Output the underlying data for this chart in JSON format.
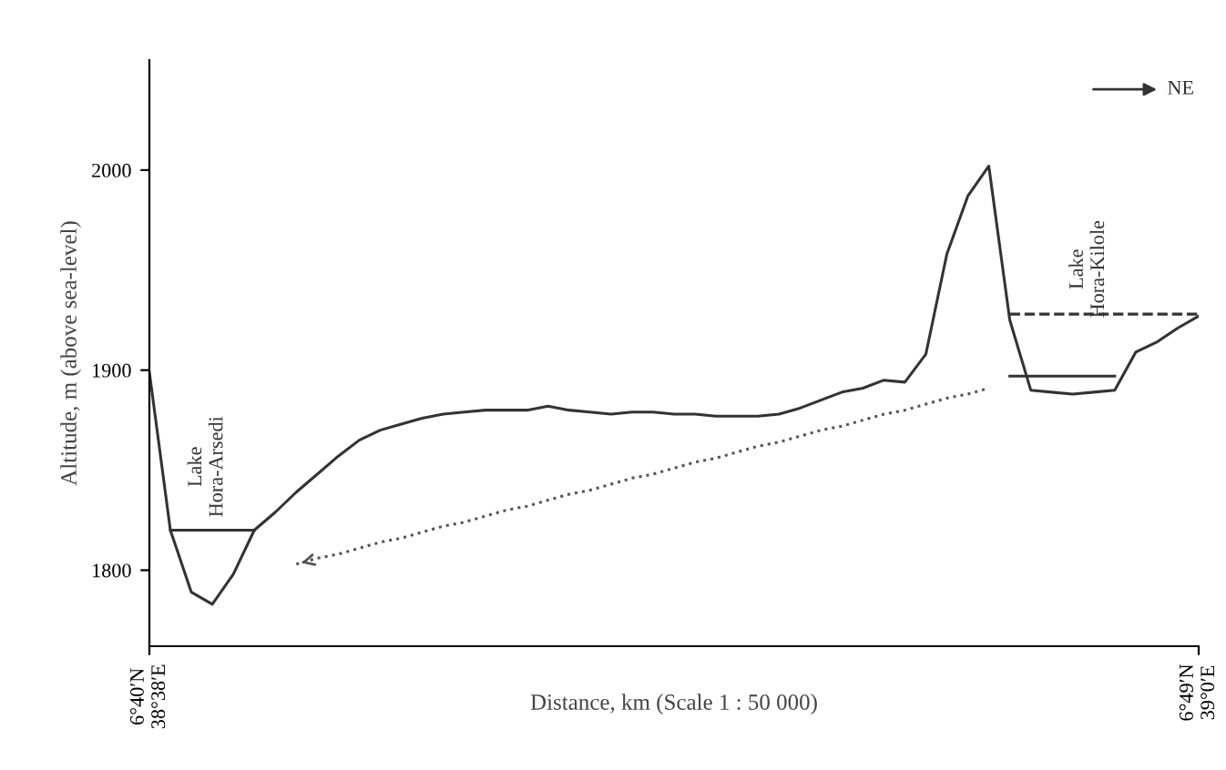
{
  "chart_data": {
    "type": "line",
    "xlabel": "Distance, km (Scale 1 : 50 000)",
    "ylabel": "Altitude, m (above sea-level)",
    "categories": [
      "6°40′N\n38°38′E",
      null,
      null,
      null,
      null,
      null,
      null,
      null,
      null,
      null,
      null,
      null,
      null,
      null,
      null,
      null,
      null,
      null,
      null,
      null,
      null,
      null,
      null,
      null,
      null,
      null,
      null,
      null,
      null,
      null,
      null,
      null,
      null,
      null,
      null,
      null,
      null,
      null,
      null,
      null,
      null,
      null,
      null,
      null,
      null,
      null,
      null,
      null,
      null,
      null,
      "6°49′N\n39°0′E"
    ],
    "ylim": [
      1762,
      2055
    ],
    "yticks": [
      1800,
      1900,
      2000
    ],
    "grid": false,
    "legend": false,
    "marker": "none",
    "series": [
      {
        "color": "#333333",
        "line_style": "solid",
        "values": [
          1899,
          1820,
          1789,
          1783,
          1798,
          1820,
          1829,
          1839,
          1848,
          1857,
          1865,
          1870,
          1873,
          1876,
          1878,
          1879,
          1880,
          1880,
          1880,
          1882,
          1880,
          1879,
          1878,
          1879,
          1879,
          1878,
          1878,
          1877,
          1877,
          1877,
          1878,
          1881,
          1885,
          1889,
          1891,
          1895,
          1894,
          1908,
          1958,
          1987,
          2002,
          1925,
          1890,
          1889,
          1888,
          1889,
          1890,
          1909,
          1914,
          1921,
          1927
        ]
      },
      {
        "color": "#333333",
        "line_style": "solid",
        "values": [
          null,
          1820,
          1820,
          1820,
          1820,
          1820,
          null,
          null,
          null,
          null,
          null,
          null,
          null,
          null,
          null,
          null,
          null,
          null,
          null,
          null,
          null,
          null,
          null,
          null,
          null,
          null,
          null,
          null,
          null,
          null,
          null,
          null,
          null,
          null,
          null,
          null,
          null,
          null,
          null,
          null,
          null,
          null,
          null,
          null,
          null,
          null,
          null,
          null,
          null,
          null,
          null
        ]
      },
      {
        "color": "#333333",
        "line_style": "solid",
        "values": [
          null,
          null,
          null,
          null,
          null,
          null,
          null,
          null,
          null,
          null,
          null,
          null,
          null,
          null,
          null,
          null,
          null,
          null,
          null,
          null,
          null,
          null,
          null,
          null,
          null,
          null,
          null,
          null,
          null,
          null,
          null,
          null,
          null,
          null,
          null,
          null,
          null,
          null,
          null,
          null,
          null,
          1897,
          1897,
          1897,
          1897,
          1897,
          1897,
          null,
          null,
          null,
          null
        ]
      },
      {
        "color": "#333333",
        "line_style": "dashed",
        "values": [
          null,
          null,
          null,
          null,
          null,
          null,
          null,
          null,
          null,
          null,
          null,
          null,
          null,
          null,
          null,
          null,
          null,
          null,
          null,
          null,
          null,
          null,
          null,
          null,
          null,
          null,
          null,
          null,
          null,
          null,
          null,
          null,
          null,
          null,
          null,
          null,
          null,
          null,
          null,
          null,
          null,
          1928,
          1928,
          1928,
          1928,
          1928,
          1928,
          1928,
          1928,
          1928,
          1928
        ]
      },
      {
        "color": "#555555",
        "line_style": "dotted",
        "values": [
          null,
          null,
          null,
          null,
          null,
          null,
          null,
          1803,
          1806,
          1808,
          1811,
          1814,
          1816,
          1819,
          1822,
          1824,
          1827,
          1830,
          1832,
          1835,
          1838,
          1840,
          1843,
          1846,
          1848,
          1851,
          1854,
          1856,
          1859,
          1862,
          1864,
          1867,
          1870,
          1872,
          1875,
          1878,
          1880,
          1883,
          1886,
          1888,
          1891,
          null,
          null,
          null,
          null,
          null,
          null,
          null,
          null,
          null,
          null
        ]
      }
    ],
    "annotations": [
      "Lake\nHora-Arsedi",
      "Lake\nHora-Kilole",
      "NE"
    ]
  }
}
